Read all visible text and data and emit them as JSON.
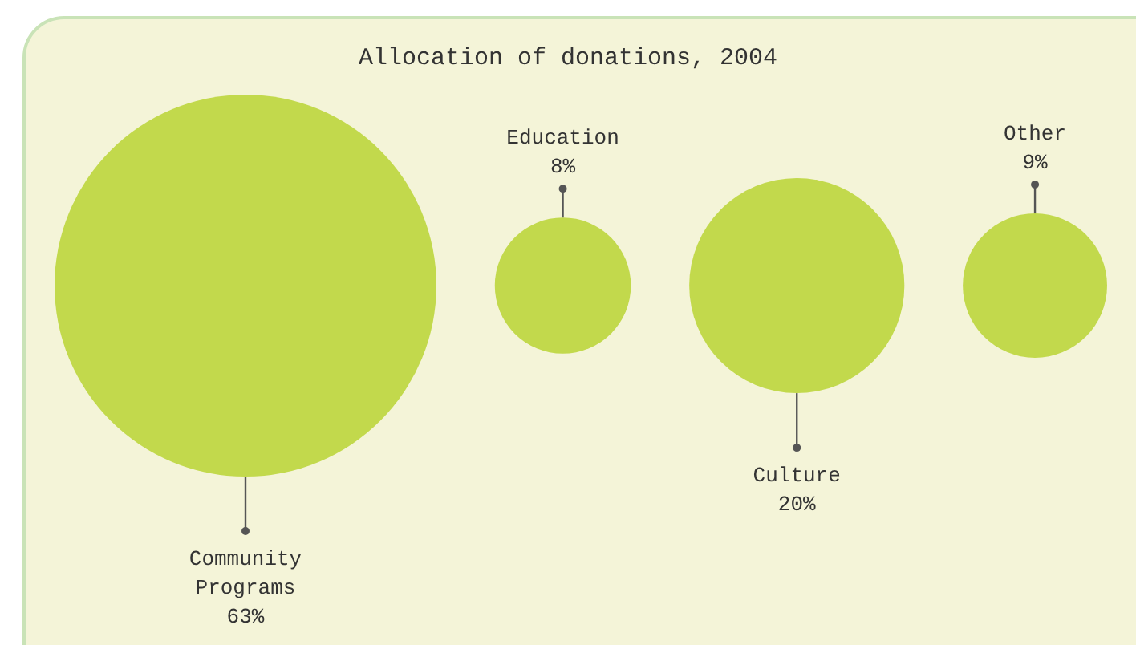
{
  "chart_data": {
    "type": "other",
    "title": "Allocation of donations, 2004",
    "categories": [
      "Community Programs",
      "Education",
      "Culture",
      "Other"
    ],
    "values": [
      63,
      8,
      20,
      9
    ],
    "value_labels": [
      "63%",
      "8%",
      "20%",
      "9%"
    ],
    "color": "#c2d94c"
  }
}
